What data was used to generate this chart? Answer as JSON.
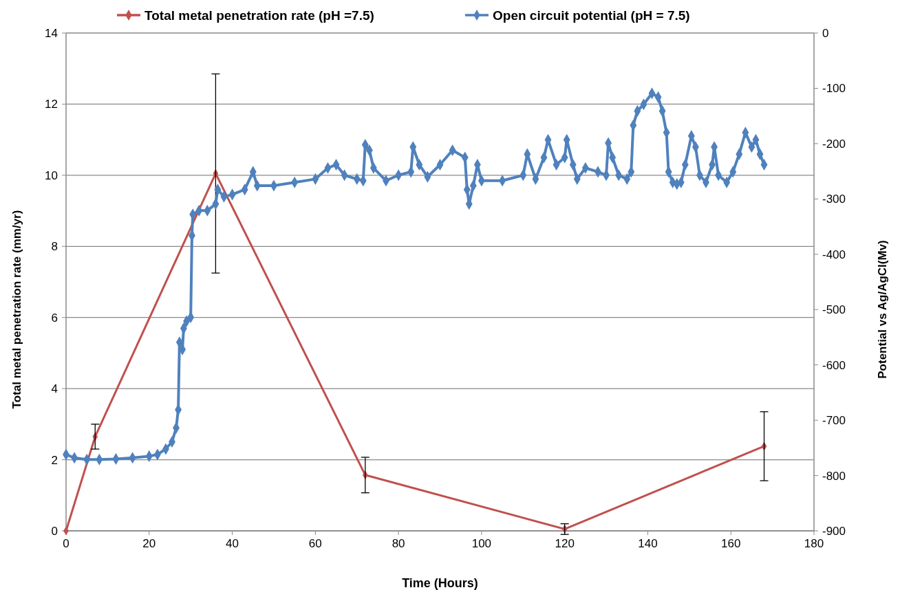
{
  "chart_data": {
    "type": "line",
    "xlabel": "Time (Hours)",
    "ylabel": "Total metal penetration rate (mm/yr)",
    "y2label": "Potential vs Ag/AgCl(Mv)",
    "xlim": [
      0,
      180
    ],
    "xticks": [
      0,
      20,
      40,
      60,
      80,
      100,
      120,
      140,
      160,
      180
    ],
    "ylim": [
      0,
      14
    ],
    "yticks": [
      0,
      2,
      4,
      6,
      8,
      10,
      12,
      14
    ],
    "y2lim": [
      -900,
      0
    ],
    "y2ticks": [
      -900,
      -800,
      -700,
      -600,
      -500,
      -400,
      -300,
      -200,
      -100,
      0
    ],
    "grid": "y",
    "legend": "top",
    "marker": "diamond",
    "line_style": "solid",
    "series": [
      {
        "name": "Total metal penetration rate (pH =7.5)",
        "color": "#c0504d",
        "x": [
          0,
          7,
          36,
          72,
          120,
          168
        ],
        "values": [
          0,
          2.65,
          10.05,
          1.57,
          0.05,
          2.38
        ],
        "errors": [
          null,
          0.35,
          2.8,
          0.5,
          0.15,
          0.97
        ]
      },
      {
        "name": "Open circuit potential (pH = 7.5)",
        "color": "#4f81bd",
        "axis": "y2",
        "x": [
          0,
          2,
          5,
          8,
          12,
          16,
          20,
          22,
          24,
          25.5,
          26.5,
          27,
          27.3,
          28,
          28.3,
          29,
          30,
          30.3,
          30.5,
          32,
          34,
          36,
          36.5,
          38,
          40,
          43,
          45,
          46,
          50,
          55,
          60,
          63,
          65,
          67,
          70,
          71.5,
          72,
          73,
          74,
          77,
          80,
          83,
          83.5,
          85,
          87,
          90,
          93,
          96,
          96.5,
          97,
          98,
          99,
          100,
          105,
          110,
          111,
          113,
          115,
          116,
          118,
          120,
          120.5,
          122,
          123,
          125,
          128,
          130,
          130.5,
          131.5,
          133,
          135,
          136,
          136.5,
          137.5,
          139,
          141,
          142.5,
          143.5,
          144.5,
          145,
          146,
          147,
          148,
          149,
          150.5,
          151.5,
          152.5,
          154,
          155.5,
          156,
          157,
          159,
          160.5,
          162,
          163.5,
          165,
          166,
          167,
          168
        ],
        "values": [
          -762,
          -768,
          -771,
          -771,
          -770,
          -768,
          -765,
          -762,
          -752,
          -739,
          -714,
          -681,
          -559,
          -572,
          -534,
          -521,
          -514,
          -366,
          -328,
          -321,
          -321,
          -309,
          -283,
          -296,
          -292,
          -283,
          -251,
          -276,
          -276,
          -270,
          -264,
          -244,
          -238,
          -257,
          -264,
          -267,
          -202,
          -212,
          -244,
          -267,
          -257,
          -251,
          -206,
          -238,
          -260,
          -238,
          -212,
          -225,
          -283,
          -309,
          -276,
          -238,
          -267,
          -267,
          -257,
          -219,
          -264,
          -225,
          -193,
          -238,
          -225,
          -193,
          -238,
          -264,
          -244,
          -251,
          -257,
          -199,
          -225,
          -257,
          -264,
          -251,
          -167,
          -141,
          -129,
          -109,
          -116,
          -141,
          -180,
          -251,
          -270,
          -273,
          -270,
          -238,
          -186,
          -206,
          -257,
          -270,
          -238,
          -206,
          -257,
          -270,
          -251,
          -219,
          -180,
          -206,
          -193,
          -219,
          -238
        ]
      }
    ]
  }
}
